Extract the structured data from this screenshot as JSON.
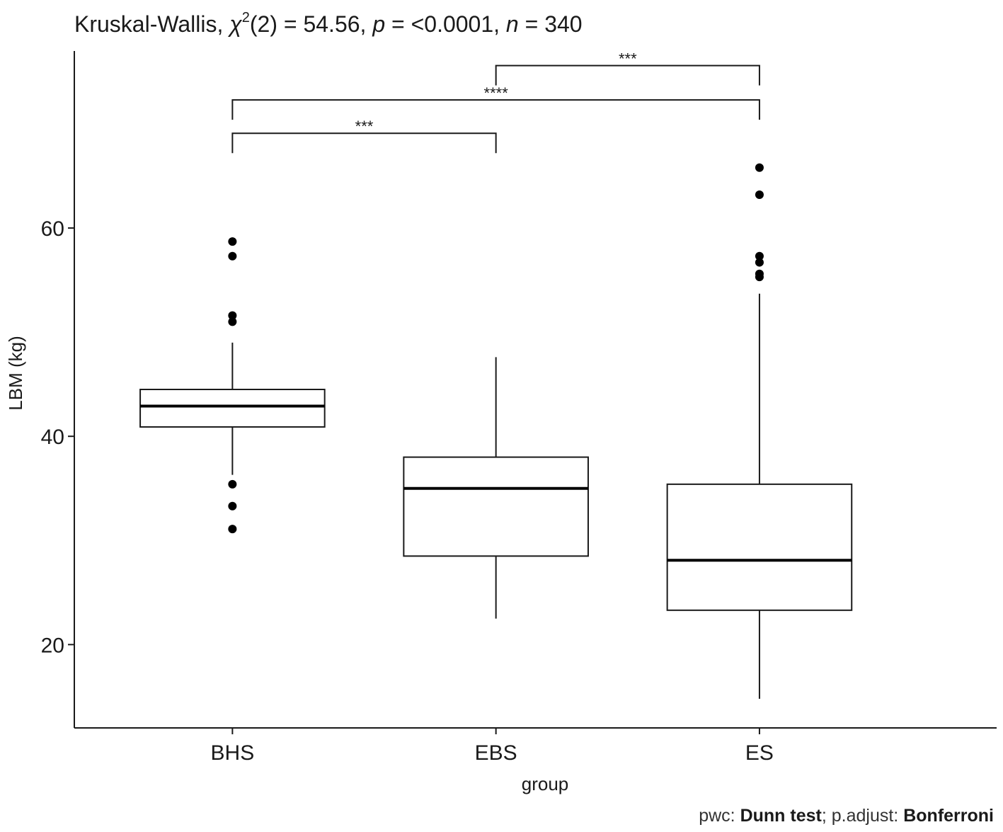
{
  "title": {
    "prefix": "Kruskal-Wallis, ",
    "chi": "χ",
    "sup": "2",
    "mid": "(2) = 54.56, ",
    "p_label": "p",
    "p_value": " = <0.0001, ",
    "n_label": "n",
    "n_value": " = 340"
  },
  "caption": {
    "pwc_prefix": "pwc: ",
    "pwc_method": "Dunn test",
    "adjust_prefix": "; p.adjust: ",
    "adjust_method": "Bonferroni"
  },
  "chart_data": {
    "type": "boxplot",
    "xlabel": "group",
    "ylabel": "LBM (kg)",
    "ylim": [
      12,
      77
    ],
    "yticks": [
      20,
      40,
      60
    ],
    "grid": false,
    "categories": [
      "BHS",
      "EBS",
      "ES"
    ],
    "boxes": [
      {
        "group": "BHS",
        "q1": 40.9,
        "median": 42.9,
        "q3": 44.5,
        "whisker_low": 36.3,
        "whisker_high": 49.0,
        "outliers": [
          58.7,
          57.3,
          51.6,
          51.0,
          35.4,
          33.3,
          31.1
        ]
      },
      {
        "group": "EBS",
        "q1": 28.5,
        "median": 35.0,
        "q3": 38.0,
        "whisker_low": 22.5,
        "whisker_high": 47.6,
        "outliers": []
      },
      {
        "group": "ES",
        "q1": 23.3,
        "median": 28.1,
        "q3": 35.4,
        "whisker_low": 14.8,
        "whisker_high": 53.7,
        "outliers": [
          65.8,
          63.2,
          57.3,
          56.7,
          55.6,
          55.3
        ]
      }
    ],
    "comparisons": [
      {
        "from": "BHS",
        "to": "EBS",
        "label": "***",
        "y": 69.1
      },
      {
        "from": "BHS",
        "to": "ES",
        "label": "****",
        "y": 72.3
      },
      {
        "from": "EBS",
        "to": "ES",
        "label": "***",
        "y": 75.6
      }
    ]
  }
}
